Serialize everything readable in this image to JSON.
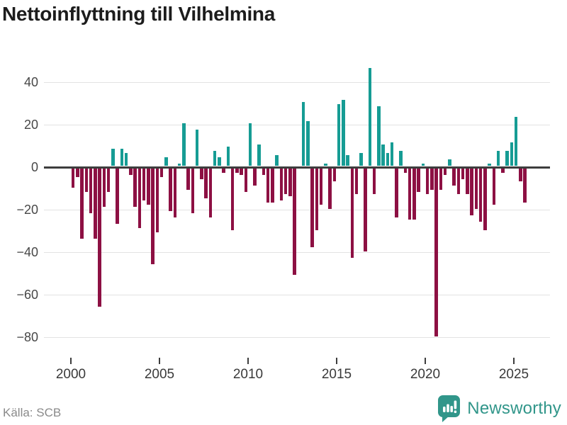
{
  "title": "Nettoinflyttning till Vilhelmina",
  "source": "Källa: SCB",
  "branding": {
    "name": "Newsworthy",
    "color": "#31968a"
  },
  "chart_data": {
    "type": "bar",
    "title": "Nettoinflyttning till Vilhelmina",
    "xlabel": "",
    "ylabel": "",
    "frequency": "quarterly",
    "start_period": "2000 Q1",
    "end_period": "2025 Q3",
    "values": [
      -9,
      -4,
      -33,
      -11,
      -21,
      -33,
      -65,
      -18,
      -11,
      8,
      -26,
      8,
      6,
      -3,
      -18,
      -28,
      -15,
      -17,
      -45,
      -30,
      -4,
      4,
      -20,
      -23,
      1,
      20,
      -10,
      -21,
      17,
      -5,
      -14,
      -23,
      7,
      4,
      -2,
      9,
      -29,
      -2,
      -3,
      -11,
      20,
      -8,
      10,
      -3,
      -16,
      -16,
      5,
      -15,
      -12,
      -13,
      -50,
      0,
      30,
      21,
      -37,
      -29,
      -17,
      1,
      -19,
      -6,
      29,
      31,
      5,
      -42,
      -12,
      6,
      -39,
      46,
      -12,
      28,
      10,
      6,
      11,
      -23,
      7,
      -2,
      -24,
      -24,
      -11,
      1,
      -12,
      -10,
      -79,
      -10,
      -3,
      3,
      -8,
      -12,
      -5,
      -12,
      -22,
      -19,
      -25,
      -29,
      1,
      -17,
      7,
      -2,
      7,
      11,
      23,
      -6,
      -16
    ],
    "x_tick_years": [
      2000,
      2005,
      2010,
      2015,
      2020,
      2025
    ],
    "x_tick_labels": [
      "2000",
      "2005",
      "2010",
      "2015",
      "2020",
      "2025"
    ],
    "y_ticks": [
      40,
      20,
      0,
      -20,
      -40,
      -60,
      -80
    ],
    "y_tick_labels": [
      "40",
      "20",
      "0",
      "−20",
      "−40",
      "−60",
      "−80"
    ],
    "ylim": [
      -88,
      50
    ],
    "grid": "horizontal",
    "legend": "none",
    "positive_color": "#169c94",
    "negative_color": "#8d1043"
  }
}
